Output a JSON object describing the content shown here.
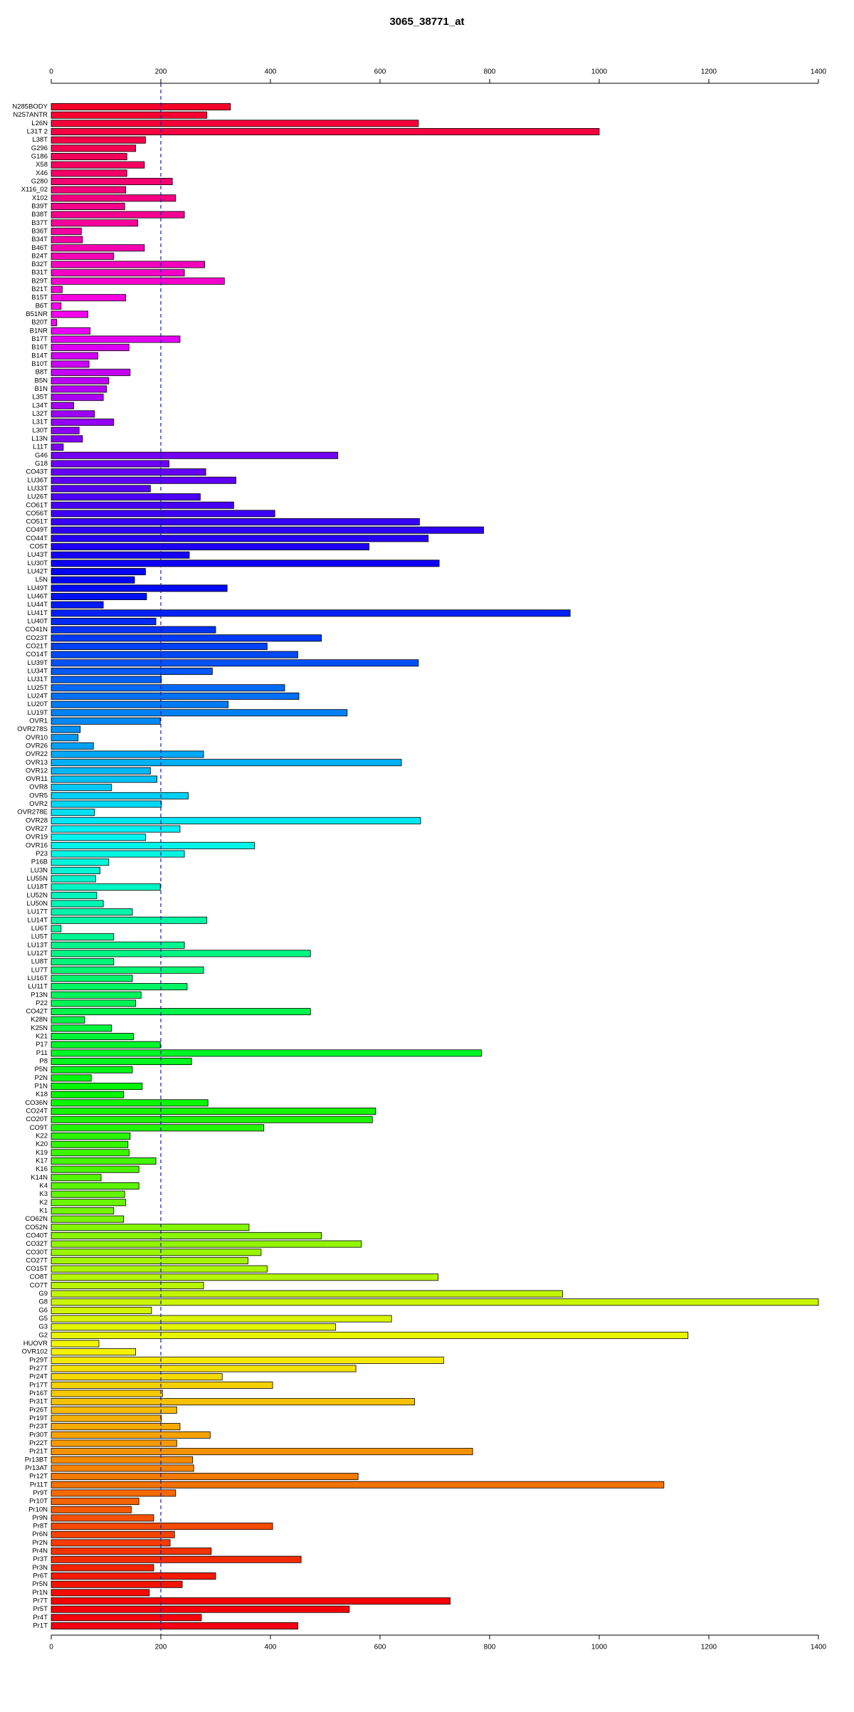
{
  "chart_data": {
    "type": "barh",
    "title": "3065_38771_at",
    "categories": [
      "N285BODY",
      "N257ANTR",
      "L26N",
      "L31T 2",
      "L38T",
      "G296",
      "G186",
      "X58",
      "X46",
      "G280",
      "X116_02",
      "X102",
      "B39T",
      "B38T",
      "B37T",
      "B36T",
      "B34T",
      "B46T",
      "B24T",
      "B32T",
      "B31T",
      "B29T",
      "B21T",
      "B15T",
      "B6T",
      "B51NR",
      "B20T",
      "B1NR",
      "B17T",
      "B16T",
      "B14T",
      "B10T",
      "B8T",
      "B5N",
      "B1N",
      "L35T",
      "L34T",
      "L32T",
      "L31T",
      "L30T",
      "L13N",
      "L11T",
      "G46",
      "G18",
      "CO43T",
      "LU36T",
      "LU33T",
      "LU26T",
      "CO61T",
      "CO56T",
      "CO51T",
      "CO49T",
      "CO44T",
      "CO5T",
      "LU43T",
      "LU30T",
      "LU42T",
      "L5N",
      "LU49T",
      "LU46T",
      "LU44T",
      "LU41T",
      "LU40T",
      "CO41N",
      "CO23T",
      "CO21T",
      "CO14T",
      "LU39T",
      "LU34T",
      "LU31T",
      "LU25T",
      "LU24T",
      "LU20T",
      "LU19T",
      "OVR1",
      "OVR278S",
      "OVR10",
      "OVR26",
      "OVR22",
      "OVR13",
      "OVR12",
      "OVR11",
      "OVR8",
      "OVR5",
      "OVR2",
      "OVR278E",
      "OVR28",
      "OVR27",
      "OVR19",
      "OVR16",
      "P23",
      "P16B",
      "LU3N",
      "LU55N",
      "LU18T",
      "LU52N",
      "LU50N",
      "LU17T",
      "LU14T",
      "LU6T",
      "LU5T",
      "LU13T",
      "LU12T",
      "LU8T",
      "LU7T",
      "LU16T",
      "LU11T",
      "P13N",
      "P22",
      "CO42T",
      "K28N",
      "K25N",
      "K21",
      "P17",
      "P11",
      "P8",
      "P5N",
      "P2N",
      "P1N",
      "K18",
      "CO36N",
      "CO24T",
      "CO20T",
      "CO9T",
      "K22",
      "K20",
      "K19",
      "K17",
      "K16",
      "K14N",
      "K4",
      "K3",
      "K2",
      "K1",
      "CO62N",
      "CO52N",
      "CO40T",
      "CO32T",
      "CO30T",
      "CO27T",
      "CO15T",
      "CO8T",
      "CO7T",
      "G9",
      "G8",
      "G6",
      "G5",
      "G3",
      "G2",
      "HUOVR",
      "OVR102",
      "Pr29T",
      "Pr27T",
      "Pr24T",
      "Pr17T",
      "Pr16T",
      "Pr31T",
      "Pr26T",
      "Pr19T",
      "Pr23T",
      "Pr30T",
      "Pr22T",
      "Pr21T",
      "Pr13BT",
      "Pr13AT",
      "Pr12T",
      "Pr11T",
      "Pr9T",
      "Pr10T",
      "Pr10N",
      "Pr9N",
      "Pr8T",
      "Pr6N",
      "Pr2N",
      "Pr4N",
      "Pr3T",
      "Pr3N",
      "Pr6T",
      "Pr5N",
      "Pr1N",
      "Pr7T",
      "Pr5T",
      "Pr4T",
      "Pr1T"
    ],
    "values": [
      327,
      284,
      670,
      1000,
      172,
      154,
      138,
      170,
      138,
      221,
      136,
      227,
      134,
      243,
      158,
      55,
      57,
      170,
      114,
      280,
      243,
      316,
      20,
      136,
      18,
      67,
      10,
      71,
      235,
      142,
      85,
      69,
      144,
      105,
      101,
      95,
      41,
      79,
      114,
      51,
      57,
      22,
      523,
      215,
      282,
      337,
      181,
      272,
      333,
      408,
      672,
      789,
      688,
      580,
      252,
      708,
      172,
      152,
      321,
      174,
      95,
      947,
      191,
      300,
      493,
      394,
      450,
      670,
      294,
      201,
      426,
      452,
      323,
      540,
      199,
      53,
      49,
      77,
      278,
      639,
      181,
      193,
      110,
      250,
      201,
      79,
      674,
      235,
      172,
      371,
      243,
      105,
      89,
      81,
      199,
      83,
      95,
      148,
      284,
      18,
      114,
      243,
      473,
      114,
      278,
      148,
      248,
      164,
      154,
      473,
      61,
      110,
      150,
      199,
      785,
      256,
      148,
      73,
      166,
      132,
      286,
      592,
      586,
      388,
      144,
      140,
      142,
      191,
      160,
      91,
      160,
      134,
      136,
      114,
      132,
      361,
      493,
      566,
      383,
      359,
      394,
      706,
      278,
      933,
      1400,
      183,
      621,
      519,
      1162,
      87,
      154,
      716,
      556,
      312,
      404,
      203,
      663,
      229,
      201,
      235,
      290,
      229,
      769,
      258,
      260,
      560,
      1118,
      227,
      160,
      146,
      187,
      404,
      225,
      217,
      292,
      456,
      187,
      300,
      239,
      179,
      728,
      544,
      274,
      450
    ],
    "xlim": [
      0,
      1400
    ],
    "xticks": [
      0,
      200,
      400,
      600,
      800,
      1000,
      1200,
      1400
    ],
    "vline": 200
  }
}
